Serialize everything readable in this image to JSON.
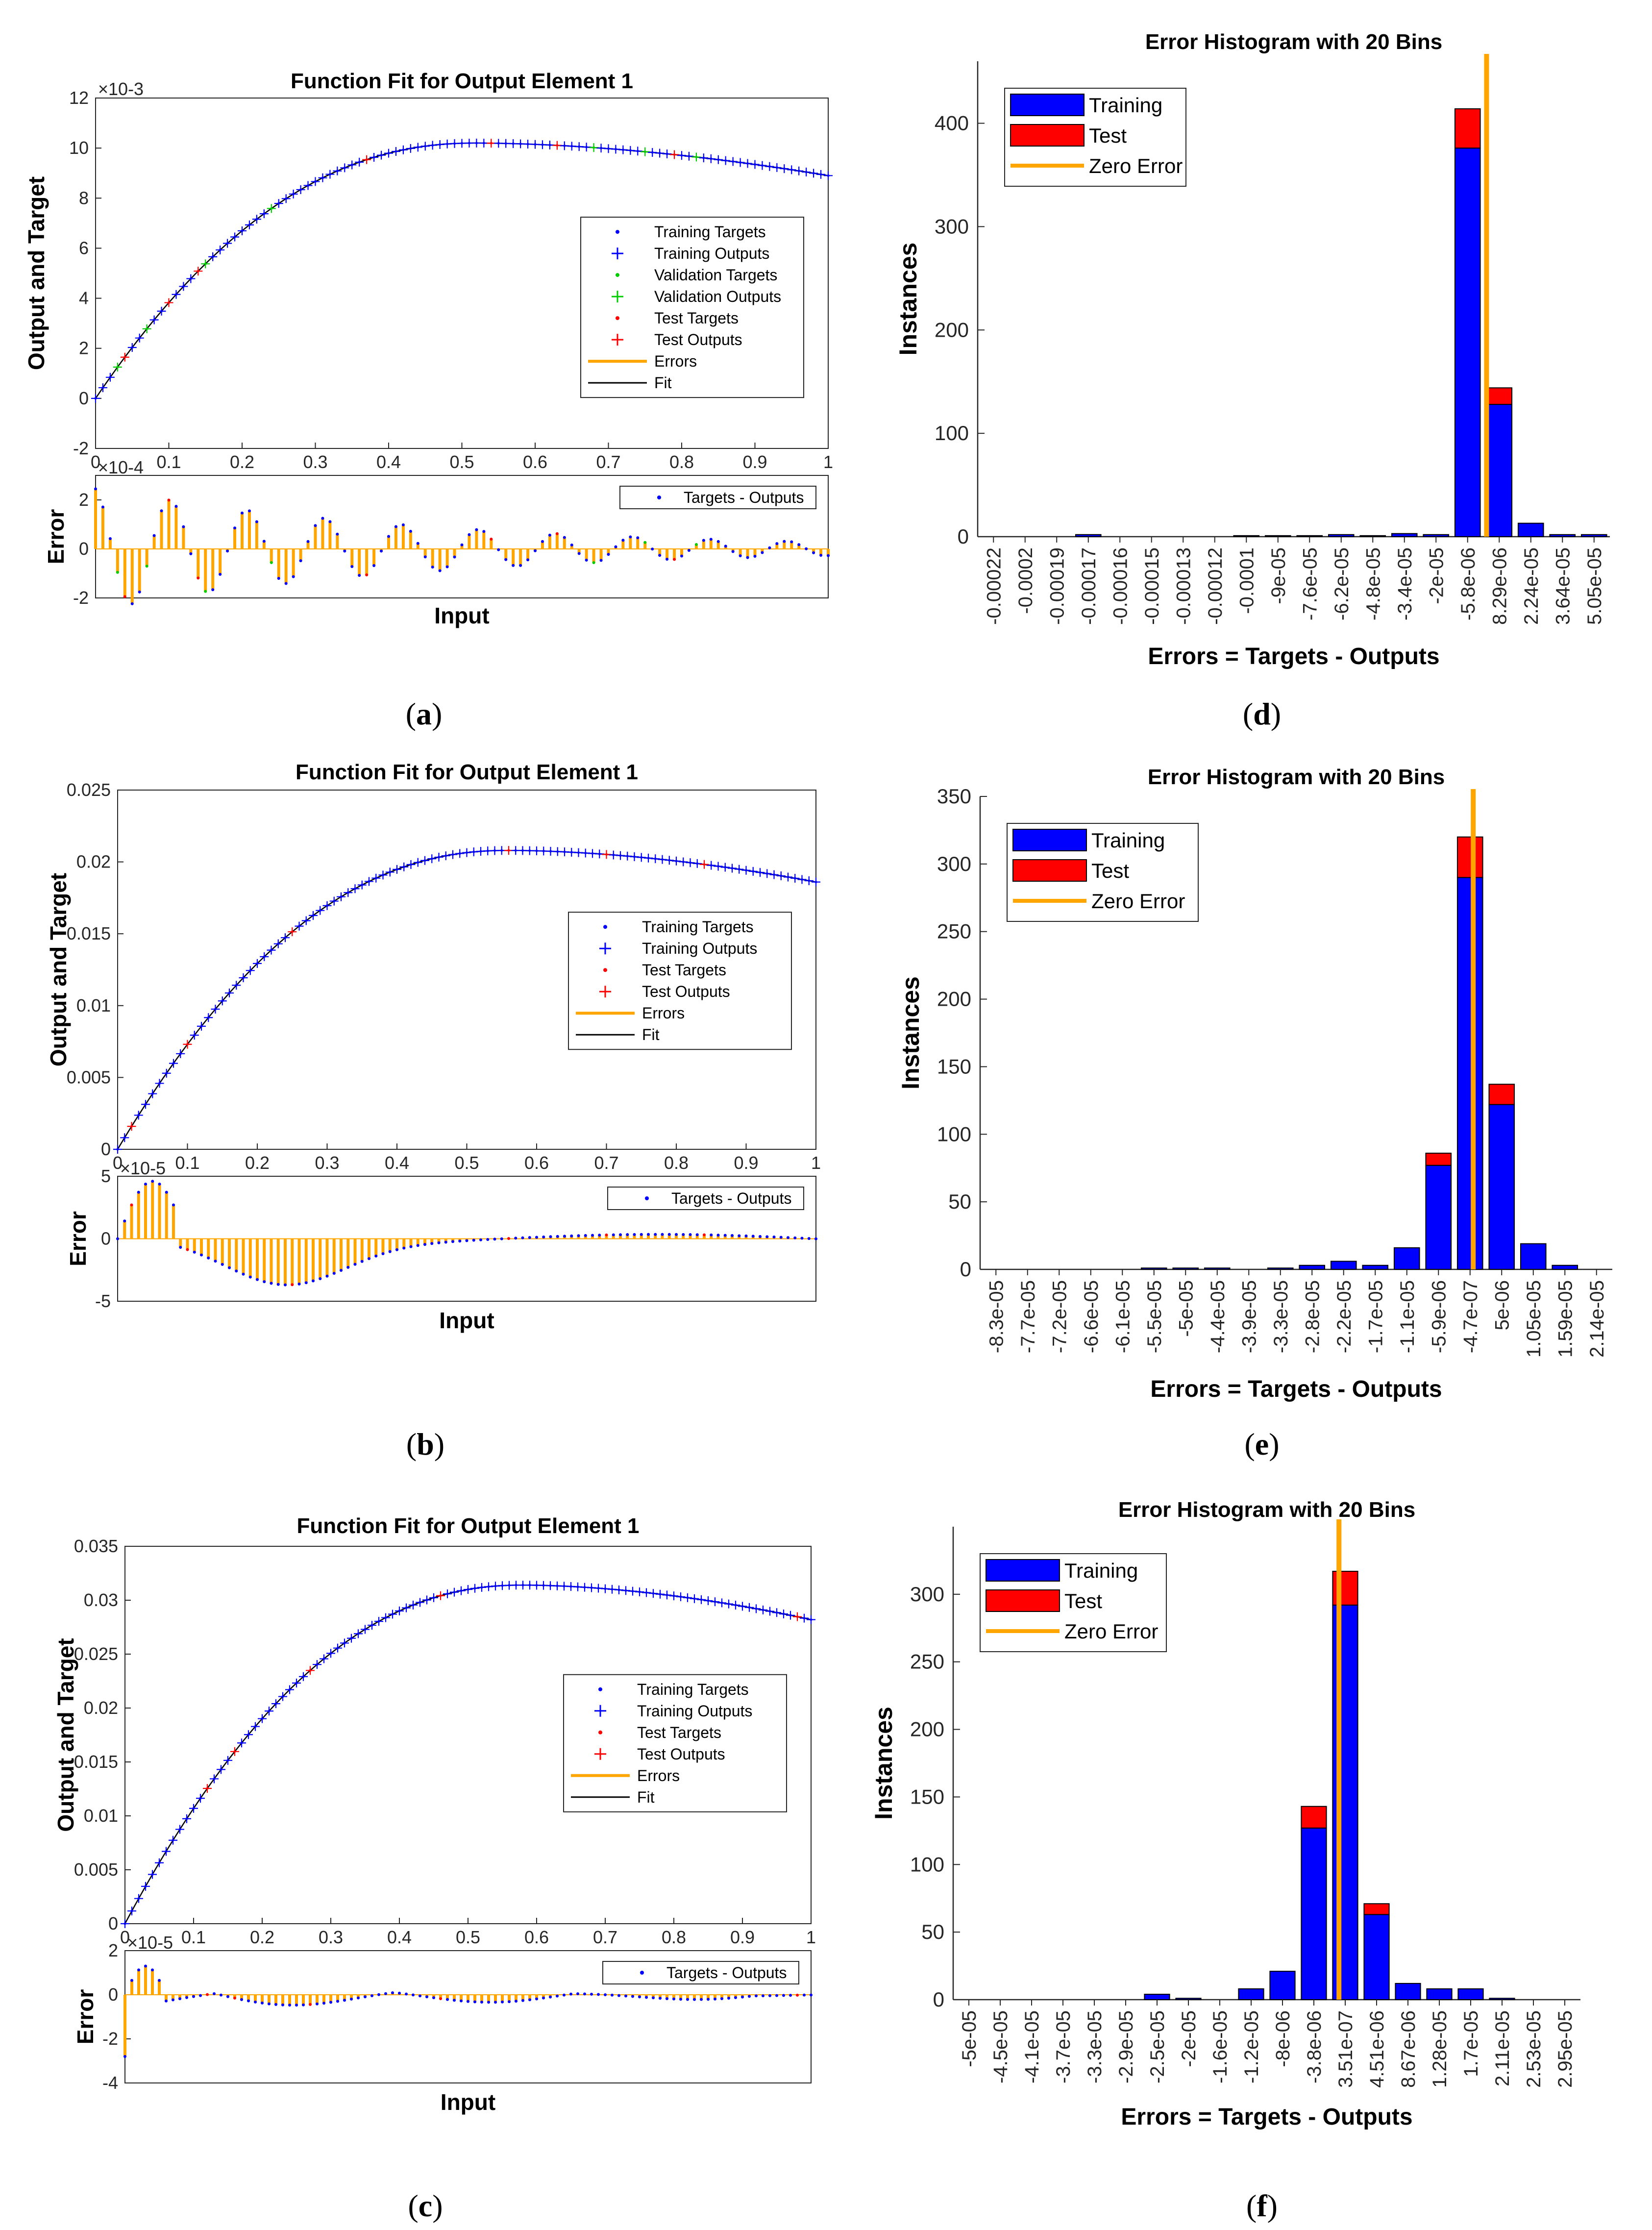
{
  "colors": {
    "training": "#0000ff",
    "test": "#ff0000",
    "validation": "#00cc00",
    "errors": "#ffa500",
    "fit": "#000000",
    "axis": "#262626"
  },
  "chart_data": [
    {
      "id": "a",
      "type": "line",
      "caption": "a",
      "title": "Function Fit for Output Element 1",
      "ylabel": "Output and Target",
      "xlabel": "Input",
      "error_ylabel": "Error",
      "y_exponent": "×10-3",
      "error_exponent": "×10-4",
      "xlim": [
        0,
        1
      ],
      "ylim": [
        -2,
        12
      ],
      "yticks": [
        "-2",
        "0",
        "2",
        "4",
        "6",
        "8",
        "10",
        "12"
      ],
      "xticks": [
        "0",
        "0.1",
        "0.2",
        "0.3",
        "0.4",
        "0.5",
        "0.6",
        "0.7",
        "0.8",
        "0.9",
        "1"
      ],
      "error_ylim": [
        -2,
        3
      ],
      "error_yticks": [
        "-2",
        "0",
        "2"
      ],
      "peak": 10.2,
      "peak_x": 0.52,
      "end_value": 8.9,
      "legend": [
        "Training Targets",
        "Training Outputs",
        "Validation Targets",
        "Validation Outputs",
        "Test Targets",
        "Test Outputs",
        "Errors",
        "Fit"
      ],
      "error_legend": "Targets - Outputs",
      "error_amplitude": 2.6,
      "error_decay": 2.0,
      "error_cycles": 9,
      "test_x": [
        0.04,
        0.1,
        0.14,
        0.37,
        0.54,
        0.63,
        0.79
      ],
      "validation_x": [
        0.03,
        0.07,
        0.15,
        0.24,
        0.68,
        0.75,
        0.82
      ]
    },
    {
      "id": "b",
      "type": "line",
      "caption": "b",
      "title": "Function Fit for Output Element 1",
      "ylabel": "Output and Target",
      "xlabel": "Input",
      "error_ylabel": "Error",
      "error_exponent": "×10-5",
      "xlim": [
        0,
        1
      ],
      "ylim": [
        0,
        0.025
      ],
      "yticks": [
        "0",
        "0.005",
        "0.01",
        "0.015",
        "0.02",
        "0.025"
      ],
      "xticks": [
        "0",
        "0.1",
        "0.2",
        "0.3",
        "0.4",
        "0.5",
        "0.6",
        "0.7",
        "0.8",
        "0.9",
        "1"
      ],
      "error_ylim": [
        -5,
        5
      ],
      "error_yticks": [
        "-5",
        "0",
        "5"
      ],
      "peak": 0.0208,
      "peak_x": 0.56,
      "end_value": 0.0186,
      "legend": [
        "Training Targets",
        "Training Outputs",
        "Test Targets",
        "Test Outputs",
        "Errors",
        "Fit"
      ],
      "error_legend": "Targets - Outputs",
      "test_x": [
        0.02,
        0.1,
        0.25,
        0.56,
        0.7,
        0.84
      ]
    },
    {
      "id": "c",
      "type": "line",
      "caption": "c",
      "title": "Function Fit for Output Element 1",
      "ylabel": "Output and Target",
      "xlabel": "Input",
      "error_ylabel": "Error",
      "error_exponent": "×10-5",
      "xlim": [
        0,
        1
      ],
      "ylim": [
        0,
        0.035
      ],
      "yticks": [
        "0",
        "0.005",
        "0.01",
        "0.015",
        "0.02",
        "0.025",
        "0.03",
        "0.035"
      ],
      "xticks": [
        "0",
        "0.1",
        "0.2",
        "0.3",
        "0.4",
        "0.5",
        "0.6",
        "0.7",
        "0.8",
        "0.9",
        "1"
      ],
      "error_ylim": [
        -4,
        2
      ],
      "error_yticks": [
        "-4",
        "-2",
        "0",
        "2"
      ],
      "peak": 0.0314,
      "peak_x": 0.58,
      "end_value": 0.0282,
      "legend": [
        "Training Targets",
        "Training Outputs",
        "Test Targets",
        "Test Outputs",
        "Errors",
        "Fit"
      ],
      "error_legend": "Targets - Outputs",
      "test_x": [
        0.12,
        0.16,
        0.27,
        0.46,
        0.98
      ]
    },
    {
      "id": "d",
      "type": "bar",
      "caption": "d",
      "title": "Error Histogram with 20 Bins",
      "xlabel": "Errors = Targets - Outputs",
      "ylabel": "Instances",
      "categories": [
        "-0.00022",
        "-0.0002",
        "-0.00019",
        "-0.00017",
        "-0.00016",
        "-0.00015",
        "-0.00013",
        "-0.00012",
        "-0.0001",
        "-9e-05",
        "-7.6e-05",
        "-6.2e-05",
        "-4.8e-05",
        "-3.4e-05",
        "-2e-05",
        "-5.8e-06",
        "8.29e-06",
        "2.24e-05",
        "3.64e-05",
        "5.05e-05"
      ],
      "series": [
        {
          "name": "Training",
          "values": [
            0,
            0,
            0,
            2,
            0,
            0,
            0,
            0,
            1,
            1,
            1,
            2,
            1,
            3,
            2,
            376,
            128,
            13,
            2,
            2
          ]
        },
        {
          "name": "Test",
          "values": [
            0,
            0,
            0,
            0,
            0,
            0,
            0,
            0,
            0,
            0,
            0,
            0,
            0,
            0,
            0,
            38,
            16,
            0,
            0,
            0
          ]
        }
      ],
      "zero_error_at": 15.6,
      "legend": [
        "Training",
        "Test",
        "Zero Error"
      ],
      "ylim": [
        0,
        460
      ],
      "yticks": [
        0,
        100,
        200,
        300,
        400
      ]
    },
    {
      "id": "e",
      "type": "bar",
      "caption": "e",
      "title": "Error Histogram with 20 Bins",
      "xlabel": "Errors = Targets - Outputs",
      "ylabel": "Instances",
      "categories": [
        "-8.3e-05",
        "-7.7e-05",
        "-7.2e-05",
        "-6.6e-05",
        "-6.1e-05",
        "-5.5e-05",
        "-5e-05",
        "-4.4e-05",
        "-3.9e-05",
        "-3.3e-05",
        "-2.8e-05",
        "-2.2e-05",
        "-1.7e-05",
        "-1.1e-05",
        "-5.9e-06",
        "-4.7e-07",
        "5e-06",
        "1.05e-05",
        "1.59e-05",
        "2.14e-05"
      ],
      "series": [
        {
          "name": "Training",
          "values": [
            0,
            0,
            0,
            0,
            0,
            1,
            1,
            1,
            0,
            1,
            3,
            6,
            3,
            16,
            77,
            290,
            122,
            19,
            3,
            0
          ]
        },
        {
          "name": "Test",
          "values": [
            0,
            0,
            0,
            0,
            0,
            0,
            0,
            0,
            0,
            0,
            0,
            0,
            0,
            0,
            9,
            30,
            15,
            0,
            0,
            0
          ]
        }
      ],
      "zero_error_at": 15.1,
      "legend": [
        "Training",
        "Test",
        "Zero Error"
      ],
      "ylim": [
        0,
        350
      ],
      "yticks": [
        0,
        50,
        100,
        150,
        200,
        250,
        300,
        350
      ]
    },
    {
      "id": "f",
      "type": "bar",
      "caption": "f",
      "title": "Error Histogram with 20 Bins",
      "xlabel": "Errors = Targets - Outputs",
      "ylabel": "Instances",
      "categories": [
        "-5e-05",
        "-4.5e-05",
        "-4.1e-05",
        "-3.7e-05",
        "-3.3e-05",
        "-2.9e-05",
        "-2.5e-05",
        "-2e-05",
        "-1.6e-05",
        "-1.2e-05",
        "-8e-06",
        "-3.8e-06",
        "3.51e-07",
        "4.51e-06",
        "8.67e-06",
        "1.28e-05",
        "1.7e-05",
        "2.11e-05",
        "2.53e-05",
        "2.95e-05"
      ],
      "series": [
        {
          "name": "Training",
          "values": [
            0,
            0,
            0,
            0,
            0,
            0,
            4,
            1,
            0,
            8,
            21,
            127,
            292,
            63,
            12,
            8,
            8,
            1,
            0,
            0
          ]
        },
        {
          "name": "Test",
          "values": [
            0,
            0,
            0,
            0,
            0,
            0,
            0,
            0,
            0,
            0,
            0,
            16,
            25,
            8,
            0,
            0,
            0,
            0,
            0,
            0
          ]
        }
      ],
      "zero_error_at": 11.8,
      "legend": [
        "Training",
        "Test",
        "Zero Error"
      ],
      "ylim": [
        0,
        350
      ],
      "yticks": [
        0,
        50,
        100,
        150,
        200,
        250,
        300
      ]
    }
  ]
}
